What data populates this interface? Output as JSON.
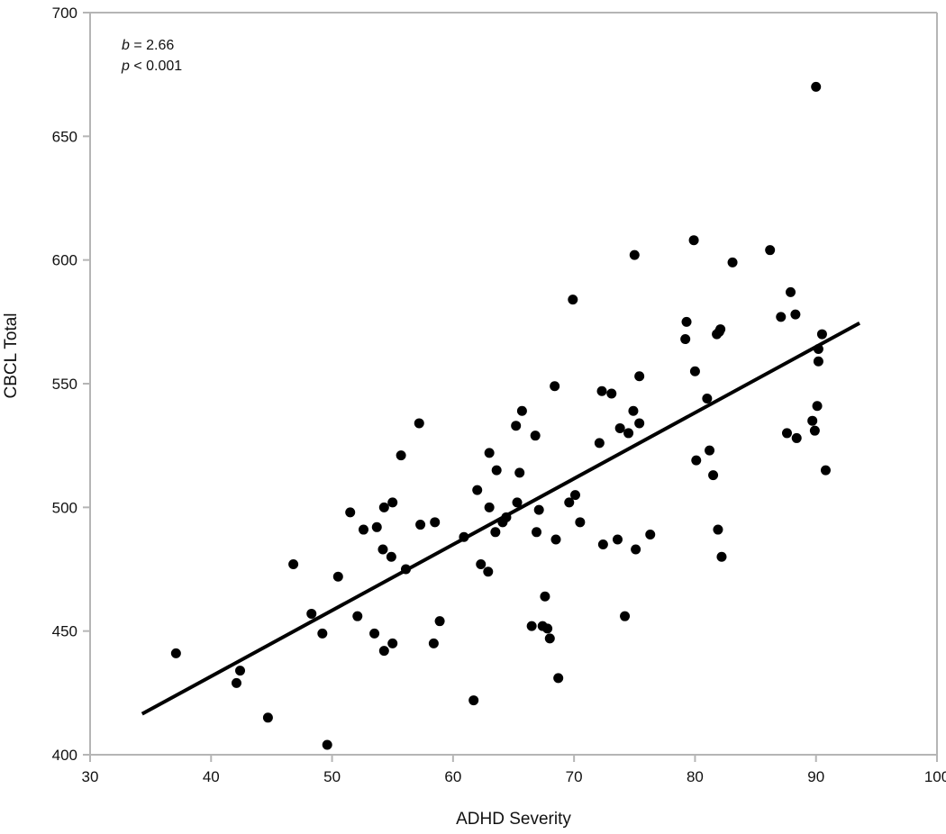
{
  "chart_data": {
    "type": "scatter",
    "title": "",
    "xlabel": "ADHD Severity",
    "ylabel": "CBCL Total",
    "xlim": [
      30,
      100
    ],
    "ylim": [
      400,
      700
    ],
    "xticks": [
      30,
      40,
      50,
      60,
      70,
      80,
      90,
      100
    ],
    "yticks": [
      400,
      450,
      500,
      550,
      600,
      650,
      700
    ],
    "grid": false,
    "legend": "none",
    "annotations": [
      {
        "var": "b",
        "text": " = 2.66"
      },
      {
        "var": "p",
        "text": " < 0.001"
      }
    ],
    "colors": {
      "points": "#000000",
      "line": "#000000",
      "axis": "#b5b5b5"
    },
    "points": [
      [
        37.1,
        441
      ],
      [
        42.1,
        429
      ],
      [
        42.4,
        434
      ],
      [
        44.7,
        415
      ],
      [
        46.8,
        477
      ],
      [
        48.3,
        457
      ],
      [
        49.2,
        449
      ],
      [
        49.6,
        404
      ],
      [
        50.5,
        472
      ],
      [
        51.5,
        498
      ],
      [
        52.1,
        456
      ],
      [
        52.6,
        491
      ],
      [
        53.5,
        449
      ],
      [
        53.7,
        492
      ],
      [
        54.2,
        483
      ],
      [
        54.3,
        442
      ],
      [
        54.3,
        500
      ],
      [
        54.9,
        480
      ],
      [
        55.0,
        445
      ],
      [
        55.0,
        502
      ],
      [
        55.7,
        521
      ],
      [
        56.1,
        475
      ],
      [
        57.2,
        534
      ],
      [
        57.3,
        493
      ],
      [
        58.4,
        445
      ],
      [
        58.5,
        494
      ],
      [
        58.9,
        454
      ],
      [
        60.9,
        488
      ],
      [
        61.7,
        422
      ],
      [
        62.0,
        507
      ],
      [
        62.3,
        477
      ],
      [
        62.9,
        474
      ],
      [
        63.0,
        522
      ],
      [
        63.0,
        500
      ],
      [
        63.5,
        490
      ],
      [
        63.6,
        515
      ],
      [
        64.1,
        494
      ],
      [
        64.4,
        496
      ],
      [
        65.2,
        533
      ],
      [
        65.3,
        502
      ],
      [
        65.5,
        514
      ],
      [
        65.7,
        539
      ],
      [
        66.5,
        452
      ],
      [
        66.8,
        529
      ],
      [
        66.9,
        490
      ],
      [
        67.1,
        499
      ],
      [
        67.4,
        452
      ],
      [
        67.6,
        464
      ],
      [
        67.8,
        451
      ],
      [
        68.0,
        447
      ],
      [
        68.4,
        549
      ],
      [
        68.5,
        487
      ],
      [
        68.7,
        431
      ],
      [
        69.6,
        502
      ],
      [
        69.9,
        584
      ],
      [
        70.1,
        505
      ],
      [
        70.5,
        494
      ],
      [
        72.1,
        526
      ],
      [
        72.3,
        547
      ],
      [
        72.4,
        485
      ],
      [
        73.1,
        546
      ],
      [
        73.6,
        487
      ],
      [
        73.8,
        532
      ],
      [
        74.2,
        456
      ],
      [
        74.5,
        530
      ],
      [
        74.9,
        539
      ],
      [
        75.0,
        602
      ],
      [
        75.1,
        483
      ],
      [
        75.4,
        534
      ],
      [
        75.4,
        553
      ],
      [
        76.3,
        489
      ],
      [
        79.2,
        568
      ],
      [
        79.3,
        575
      ],
      [
        79.9,
        608
      ],
      [
        80.0,
        555
      ],
      [
        80.1,
        519
      ],
      [
        81.0,
        544
      ],
      [
        81.2,
        523
      ],
      [
        81.5,
        513
      ],
      [
        81.8,
        570
      ],
      [
        81.9,
        491
      ],
      [
        82.0,
        571
      ],
      [
        82.1,
        572
      ],
      [
        82.2,
        480
      ],
      [
        83.1,
        599
      ],
      [
        86.2,
        604
      ],
      [
        87.1,
        577
      ],
      [
        87.6,
        530
      ],
      [
        87.9,
        587
      ],
      [
        88.3,
        578
      ],
      [
        88.4,
        528
      ],
      [
        89.7,
        535
      ],
      [
        89.9,
        531
      ],
      [
        90.0,
        670
      ],
      [
        90.1,
        541
      ],
      [
        90.2,
        564
      ],
      [
        90.2,
        559
      ],
      [
        90.5,
        570
      ],
      [
        90.8,
        515
      ]
    ],
    "regression_line": [
      [
        34.3,
        416.5
      ],
      [
        93.6,
        574.5
      ]
    ]
  }
}
